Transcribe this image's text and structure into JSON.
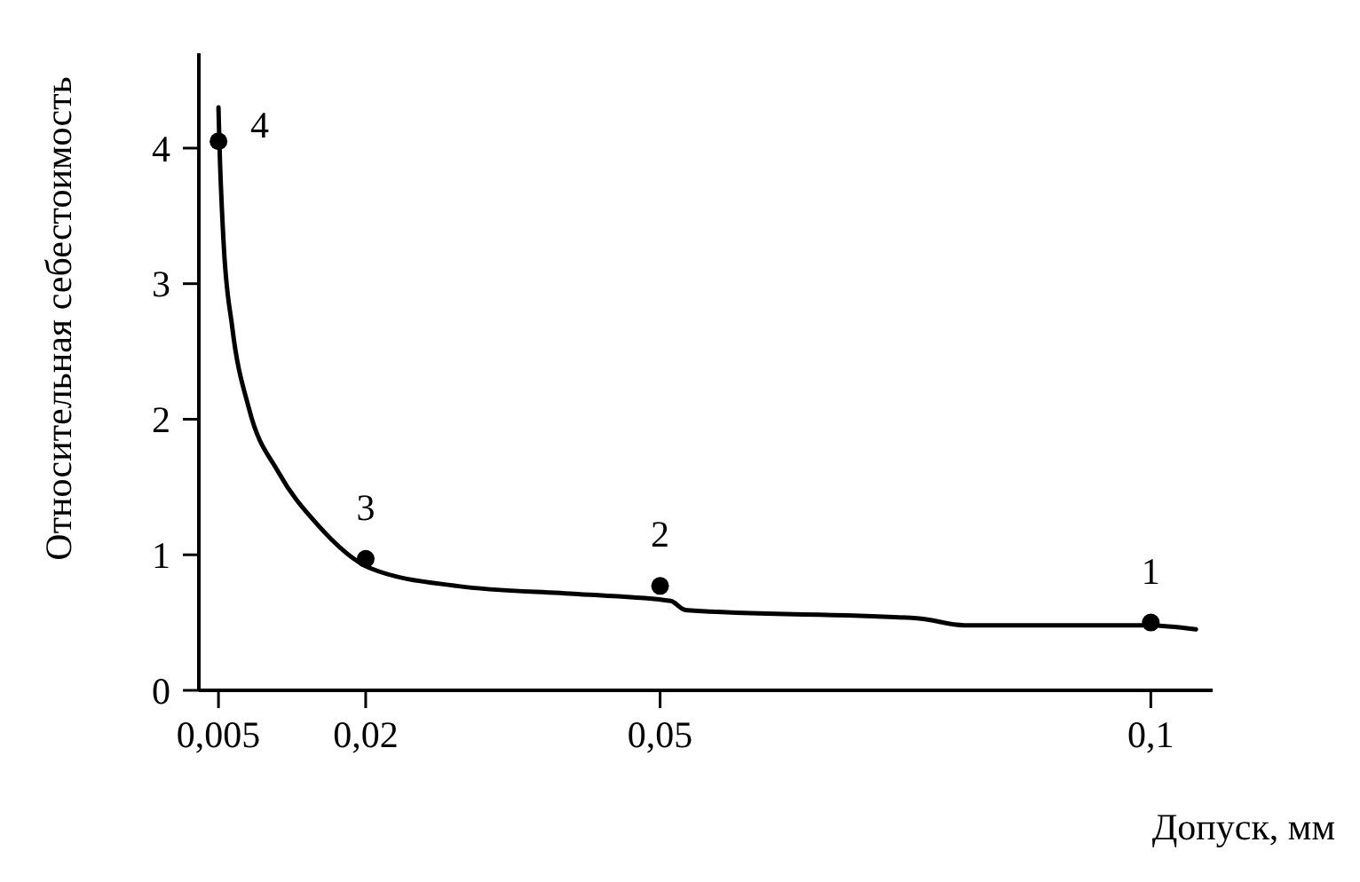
{
  "chart_data": {
    "type": "line",
    "xlabel": "Допуск, мм",
    "ylabel": "Относительная себестоимость",
    "xlim": [
      0.003,
      0.1063
    ],
    "xticks": [
      {
        "value": 0.005,
        "label": "0,005"
      },
      {
        "value": 0.02,
        "label": "0,02"
      },
      {
        "value": 0.05,
        "label": "0,05"
      },
      {
        "value": 0.1,
        "label": "0,1"
      }
    ],
    "ylim": [
      0,
      4.7
    ],
    "yticks": [
      0,
      1,
      2,
      3,
      4
    ],
    "series": [
      {
        "type": "line",
        "color": "#000000",
        "line_style": "solid",
        "x": [
          0.005,
          0.00509,
          0.0055,
          0.0064,
          0.0081,
          0.0111,
          0.015,
          0.0205,
          0.0293,
          0.0416,
          0.0511,
          0.0523,
          0.0528,
          0.0764,
          0.081,
          0.0998,
          0.1046
        ],
        "values": [
          4.3,
          4.05,
          3.33,
          2.68,
          2.08,
          1.61,
          1.23,
          0.9,
          0.77,
          0.71,
          0.66,
          0.6,
          0.59,
          0.53,
          0.48,
          0.48,
          0.45
        ]
      },
      {
        "type": "scatter",
        "color": "#000000",
        "marker": "circle",
        "x": [
          0.005,
          0.02,
          0.05,
          0.1
        ],
        "values": [
          4.05,
          0.97,
          0.77,
          0.5
        ]
      }
    ],
    "annotations": [
      {
        "text": "4",
        "x": 0.005,
        "y": 4.05
      },
      {
        "text": "3",
        "x": 0.02,
        "y": 0.97
      },
      {
        "text": "2",
        "x": 0.05,
        "y": 0.77
      },
      {
        "text": "1",
        "x": 0.1,
        "y": 0.5
      }
    ]
  }
}
